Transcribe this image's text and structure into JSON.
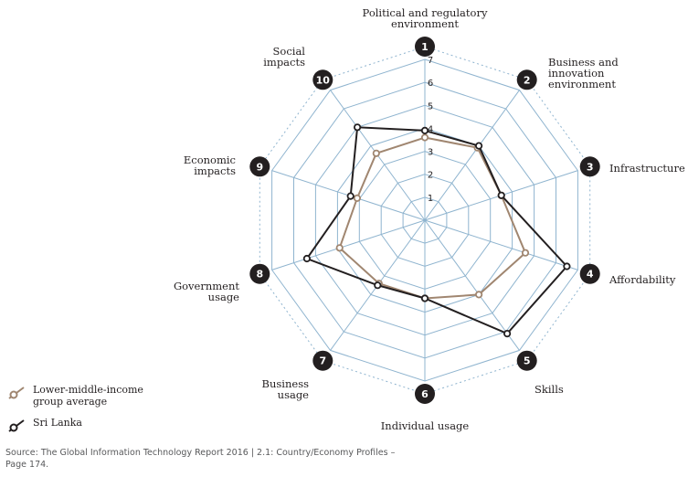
{
  "chart_data": {
    "type": "radar",
    "axes": [
      {
        "number": "1",
        "label": "Political and regulatory environment"
      },
      {
        "number": "2",
        "label": "Business and innovation environment"
      },
      {
        "number": "3",
        "label": "Infrastructure"
      },
      {
        "number": "4",
        "label": "Affordability"
      },
      {
        "number": "5",
        "label": "Skills"
      },
      {
        "number": "6",
        "label": "Individual usage"
      },
      {
        "number": "7",
        "label": "Business usage"
      },
      {
        "number": "8",
        "label": "Government usage"
      },
      {
        "number": "9",
        "label": "Economic impacts"
      },
      {
        "number": "10",
        "label": "Social impacts"
      }
    ],
    "range": [
      0,
      7
    ],
    "ticks": [
      "1",
      "2",
      "3",
      "4",
      "5",
      "6",
      "7"
    ],
    "series": [
      {
        "name": "Lower-middle-income group average",
        "color": "#a08670",
        "values": [
          3.6,
          3.9,
          3.5,
          4.6,
          4.0,
          3.4,
          3.4,
          3.9,
          3.1,
          3.6
        ]
      },
      {
        "name": "Sri Lanka",
        "color": "#231f20",
        "values": [
          3.9,
          4.0,
          3.5,
          6.5,
          6.1,
          3.4,
          3.5,
          5.4,
          3.4,
          5.0
        ]
      }
    ],
    "legend_position": "bottom-left"
  },
  "source": "Source: The Global Information Technology Report 2016 | 2.1: Country/Economy Profiles – Page 174."
}
